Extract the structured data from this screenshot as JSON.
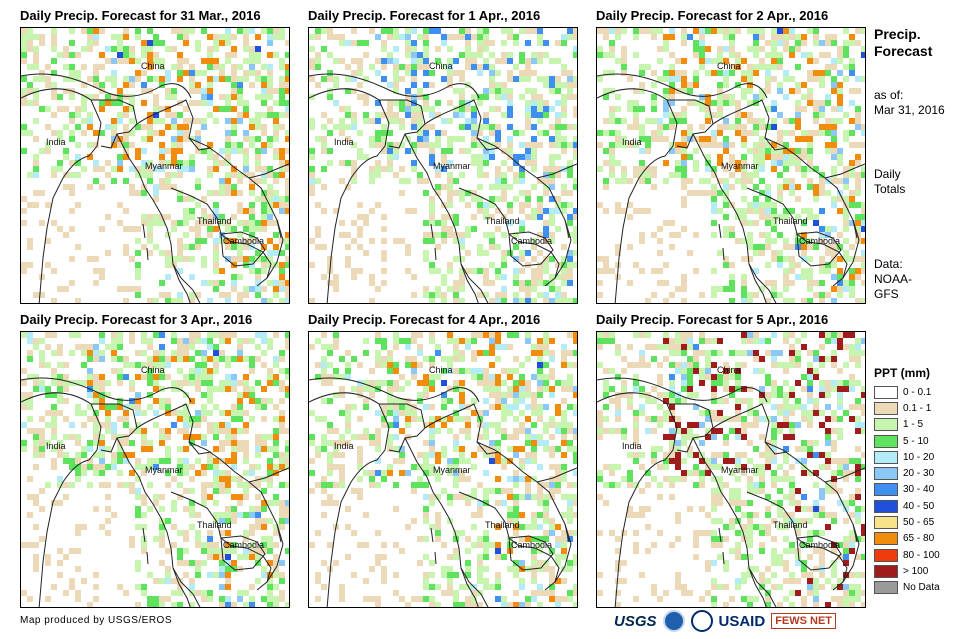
{
  "panels": [
    {
      "title": "Daily Precip. Forecast for 31 Mar., 2016",
      "seed": 11,
      "focus": "high"
    },
    {
      "title": "Daily Precip. Forecast for 1 Apr., 2016",
      "seed": 23,
      "focus": "low"
    },
    {
      "title": "Daily Precip. Forecast for 2 Apr., 2016",
      "seed": 37,
      "focus": "med"
    },
    {
      "title": "Daily Precip. Forecast for 3 Apr., 2016",
      "seed": 41,
      "focus": "med"
    },
    {
      "title": "Daily Precip. Forecast for 4 Apr., 2016",
      "seed": 53,
      "focus": "high"
    },
    {
      "title": "Daily Precip. Forecast for 5 Apr., 2016",
      "seed": 67,
      "focus": "vhigh"
    }
  ],
  "places": {
    "china": "China",
    "india": "India",
    "myanmar": "Myanmar",
    "thailand": "Thailand",
    "cambodia": "Cambodia"
  },
  "sidebar": {
    "title_line1": "Precip.",
    "title_line2": "Forecast",
    "asof_line1": "as of:",
    "asof_line2": "Mar 31, 2016",
    "totals_line1": "Daily",
    "totals_line2": "Totals",
    "data_line1": "Data:",
    "data_line2": "NOAA-",
    "data_line3": "GFS"
  },
  "legend": {
    "title": "PPT (mm)",
    "items": [
      {
        "label": "0 - 0.1",
        "color": "#ffffff"
      },
      {
        "label": "0.1 - 1",
        "color": "#ecd9b8"
      },
      {
        "label": "1 - 5",
        "color": "#c7f5b0"
      },
      {
        "label": "5 - 10",
        "color": "#5fe35f"
      },
      {
        "label": "10 - 20",
        "color": "#b3ecf7"
      },
      {
        "label": "20 - 30",
        "color": "#8cc8f5"
      },
      {
        "label": "30 - 40",
        "color": "#3f8ff0"
      },
      {
        "label": "40 - 50",
        "color": "#1f4fdc"
      },
      {
        "label": "50 - 65",
        "color": "#f9e38a"
      },
      {
        "label": "65 - 80",
        "color": "#f28c0c"
      },
      {
        "label": "80 - 100",
        "color": "#f03c0c"
      },
      {
        "label": "> 100",
        "color": "#a01c1c"
      },
      {
        "label": "No Data",
        "color": "#9a9a9a"
      }
    ]
  },
  "credit": "Map produced by USGS/EROS",
  "logos": {
    "usgs": "USGS",
    "usaid": "USAID",
    "fews": "FEWS NET"
  }
}
